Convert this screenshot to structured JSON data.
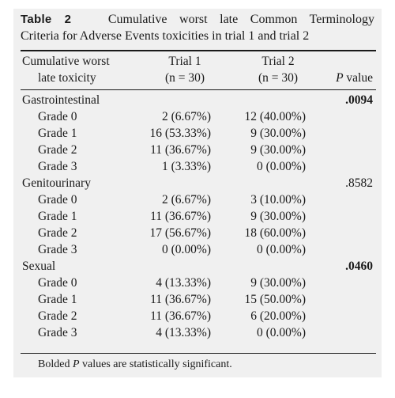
{
  "caption": {
    "label": "Table 2",
    "text_line1": "Cumulative worst late Common Terminology",
    "text_line2": "Criteria for Adverse Events toxicities in trial 1 and trial 2"
  },
  "header": {
    "col1_line1": "Cumulative worst",
    "col1_line2": "late toxicity",
    "col2_line1": "Trial 1",
    "col2_line2": "(n = 30)",
    "col3_line1": "Trial 2",
    "col3_line2": "(n = 30)",
    "col4_p": "P",
    "col4_rest": "value"
  },
  "rows": [
    {
      "label": "Gastrointestinal",
      "t1": "",
      "t2": "",
      "p": ".0094",
      "p_bold": true,
      "group": true
    },
    {
      "label": "Grade 0",
      "t1": "2 (6.67%)",
      "t2": "12 (40.00%)",
      "p": ""
    },
    {
      "label": "Grade 1",
      "t1": "16 (53.33%)",
      "t2": "9 (30.00%)",
      "p": ""
    },
    {
      "label": "Grade 2",
      "t1": "11 (36.67%)",
      "t2": "9 (30.00%)",
      "p": ""
    },
    {
      "label": "Grade 3",
      "t1": "1 (3.33%)",
      "t2": "0 (0.00%)",
      "p": ""
    },
    {
      "label": "Genitourinary",
      "t1": "",
      "t2": "",
      "p": ".8582",
      "p_bold": false,
      "group": true
    },
    {
      "label": "Grade 0",
      "t1": "2 (6.67%)",
      "t2": "3 (10.00%)",
      "p": ""
    },
    {
      "label": "Grade 1",
      "t1": "11 (36.67%)",
      "t2": "9 (30.00%)",
      "p": ""
    },
    {
      "label": "Grade 2",
      "t1": "17 (56.67%)",
      "t2": "18 (60.00%)",
      "p": ""
    },
    {
      "label": "Grade 3",
      "t1": "0 (0.00%)",
      "t2": "0 (0.00%)",
      "p": ""
    },
    {
      "label": "Sexual",
      "t1": "",
      "t2": "",
      "p": ".0460",
      "p_bold": true,
      "group": true
    },
    {
      "label": "Grade 0",
      "t1": "4 (13.33%)",
      "t2": "9 (30.00%)",
      "p": ""
    },
    {
      "label": "Grade 1",
      "t1": "11 (36.67%)",
      "t2": "15 (50.00%)",
      "p": ""
    },
    {
      "label": "Grade 2",
      "t1": "11 (36.67%)",
      "t2": "6 (20.00%)",
      "p": ""
    },
    {
      "label": "Grade 3",
      "t1": "4 (13.33%)",
      "t2": "0 (0.00%)",
      "p": ""
    }
  ],
  "footnote": {
    "prefix": "Bolded",
    "p": "P",
    "suffix": "values are statistically significant."
  }
}
